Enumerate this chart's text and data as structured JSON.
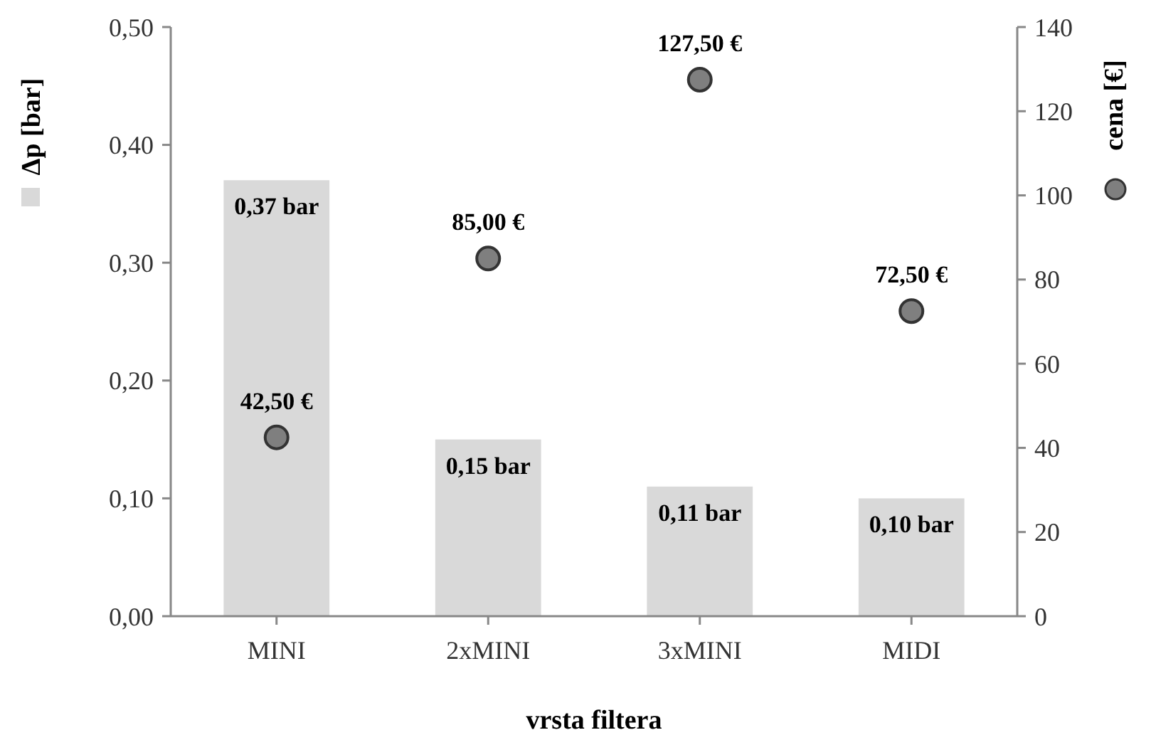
{
  "chart_data": {
    "type": "bar",
    "categories": [
      "MINI",
      "2xMINI",
      "3xMINI",
      "MIDI"
    ],
    "xlabel": "vrsta filtera",
    "ylabel": "Δp [bar]",
    "y2label": "cena [€]",
    "ylim": [
      0,
      0.5
    ],
    "yticks": [
      {
        "value": 0,
        "label": "0,00"
      },
      {
        "value": 0.1,
        "label": "0,10"
      },
      {
        "value": 0.2,
        "label": "0,20"
      },
      {
        "value": 0.3,
        "label": "0,30"
      },
      {
        "value": 0.4,
        "label": "0,40"
      },
      {
        "value": 0.5,
        "label": "0,50"
      }
    ],
    "y2lim": [
      0,
      140
    ],
    "y2ticks": [
      0,
      20,
      40,
      60,
      80,
      100,
      120,
      140
    ],
    "marker": "circle",
    "series": [
      {
        "color": "#d9d9d9",
        "values": [
          0.37,
          0.15,
          0.11,
          0.1
        ],
        "value_labels": [
          "0,37 bar",
          "0,15 bar",
          "0,11 bar",
          "0,10 bar"
        ]
      },
      {
        "type": "scatter",
        "axis": "y2",
        "color": "#7f7f7f",
        "values": [
          42.5,
          85,
          127.5,
          72.5
        ],
        "value_labels": [
          "42,50 €",
          "85,00 €",
          "127,50 €",
          "72,50 €"
        ]
      }
    ]
  }
}
